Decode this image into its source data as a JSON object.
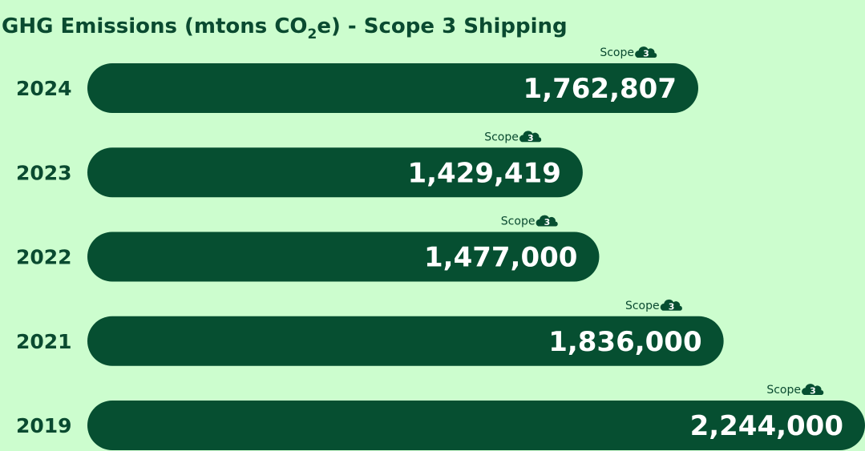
{
  "chart_data": {
    "type": "bar",
    "orientation": "horizontal",
    "title_parts": {
      "before": "GHG Emissions (mtons CO",
      "subscript": "2",
      "after": "e) - Scope 3 Shipping"
    },
    "categories": [
      "2024",
      "2023",
      "2022",
      "2021",
      "2019"
    ],
    "values": [
      1762807,
      1429419,
      1477000,
      1836000,
      2244000
    ],
    "value_labels": [
      "1,762,807",
      "1,429,419",
      "1,477,000",
      "1,836,000",
      "2,244,000"
    ],
    "badge": {
      "label": "Scope",
      "number": "3",
      "icon": "cloud-icon"
    },
    "grid": false,
    "legend": "none",
    "colors": {
      "background": "#ccfdce",
      "bar": "#064f31",
      "bar_text": "#ffffff",
      "label_text": "#0a4a30",
      "badge_cloud": "#064f31",
      "badge_number": "#ffffff"
    }
  }
}
